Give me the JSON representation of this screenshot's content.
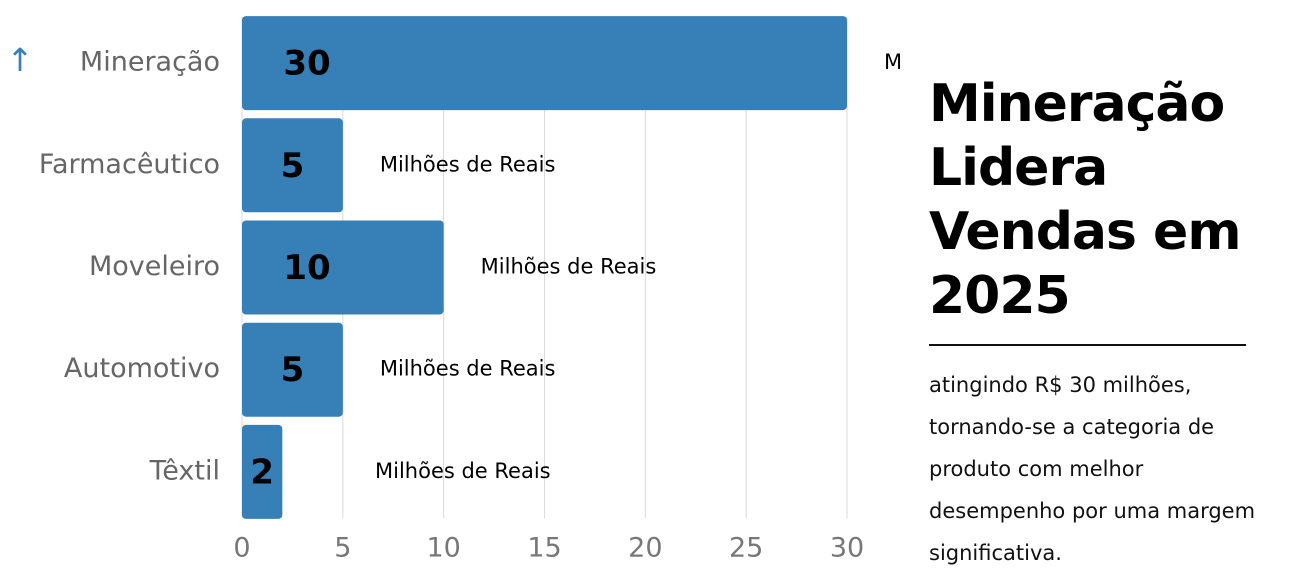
{
  "chart_data": {
    "type": "bar",
    "orientation": "horizontal",
    "title": "Mineração Lidera Vendas em 2025",
    "subtitle": "atingindo R$ 30 milhões, tornando-se a categoria de produto com melhor desempenho por uma margem significativa.",
    "categories": [
      "Mineração",
      "Farmacêutico",
      "Moveleiro",
      "Automotivo",
      "Têxtil"
    ],
    "values": [
      30,
      5,
      10,
      5,
      2
    ],
    "unit_label": "Milhões de Reais",
    "color": "#367fb7",
    "xlim": [
      0,
      30
    ],
    "xticks": [
      0,
      5,
      10,
      15,
      20,
      25,
      30
    ],
    "grid": true
  }
}
